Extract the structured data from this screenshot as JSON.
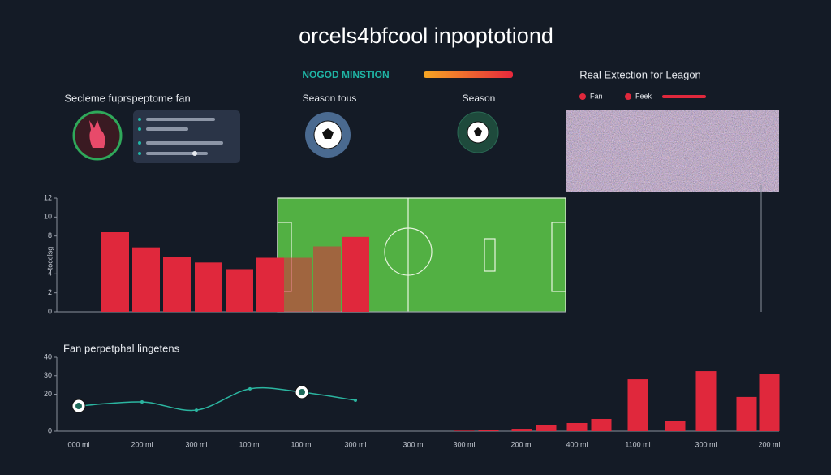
{
  "header": {
    "title": "orcels4bfcool inpoptotiond"
  },
  "mission": {
    "label": "NOGOD MINSTION"
  },
  "legend_panel": {
    "title": "Real Extection for Leagon",
    "items": [
      "Fan",
      "Feek"
    ]
  },
  "profile": {
    "title": "Secleme fuprspeptome fan"
  },
  "season_tous": {
    "label": "Season tous"
  },
  "season": {
    "label": "Season"
  },
  "chart_data": [
    {
      "type": "bar",
      "ylabel": "tocelsg",
      "categories": [
        null,
        null,
        null,
        null,
        null,
        null,
        null,
        null,
        null
      ],
      "values": [
        8.4,
        6.8,
        5.8,
        5.2,
        4.5,
        5.7,
        5.7,
        6.9,
        7.9
      ],
      "color": "#e0283c",
      "ylim": [
        0,
        12
      ],
      "yticks": [
        0,
        2,
        4,
        8,
        10,
        12
      ]
    },
    {
      "type": "line",
      "title": "Fan perpetphal lingetens",
      "categories": [
        "000 ml",
        "200 ml",
        "300 ml",
        "100 ml",
        "100 ml",
        "300 ml",
        "300 ml"
      ],
      "series": [
        {
          "color": "#2bb5a0",
          "values": [
            13.6,
            15.8,
            11.4,
            22.9,
            21.1,
            16.7,
            null
          ]
        }
      ],
      "ylim": [
        0,
        40
      ],
      "yticks": [
        0,
        20,
        30,
        40
      ]
    },
    {
      "type": "bar",
      "categories": [
        "300 ml",
        null,
        "200 ml",
        null,
        "400 ml",
        null,
        "1100 ml",
        null,
        "300 ml",
        null,
        "200 ml"
      ],
      "values": [
        0.3,
        0.5,
        1.3,
        3.1,
        4.4,
        6.6,
        28.1,
        5.7,
        32.5,
        18.5,
        30.8
      ],
      "color": "#e0283c",
      "ylim": [
        0,
        40
      ]
    }
  ]
}
